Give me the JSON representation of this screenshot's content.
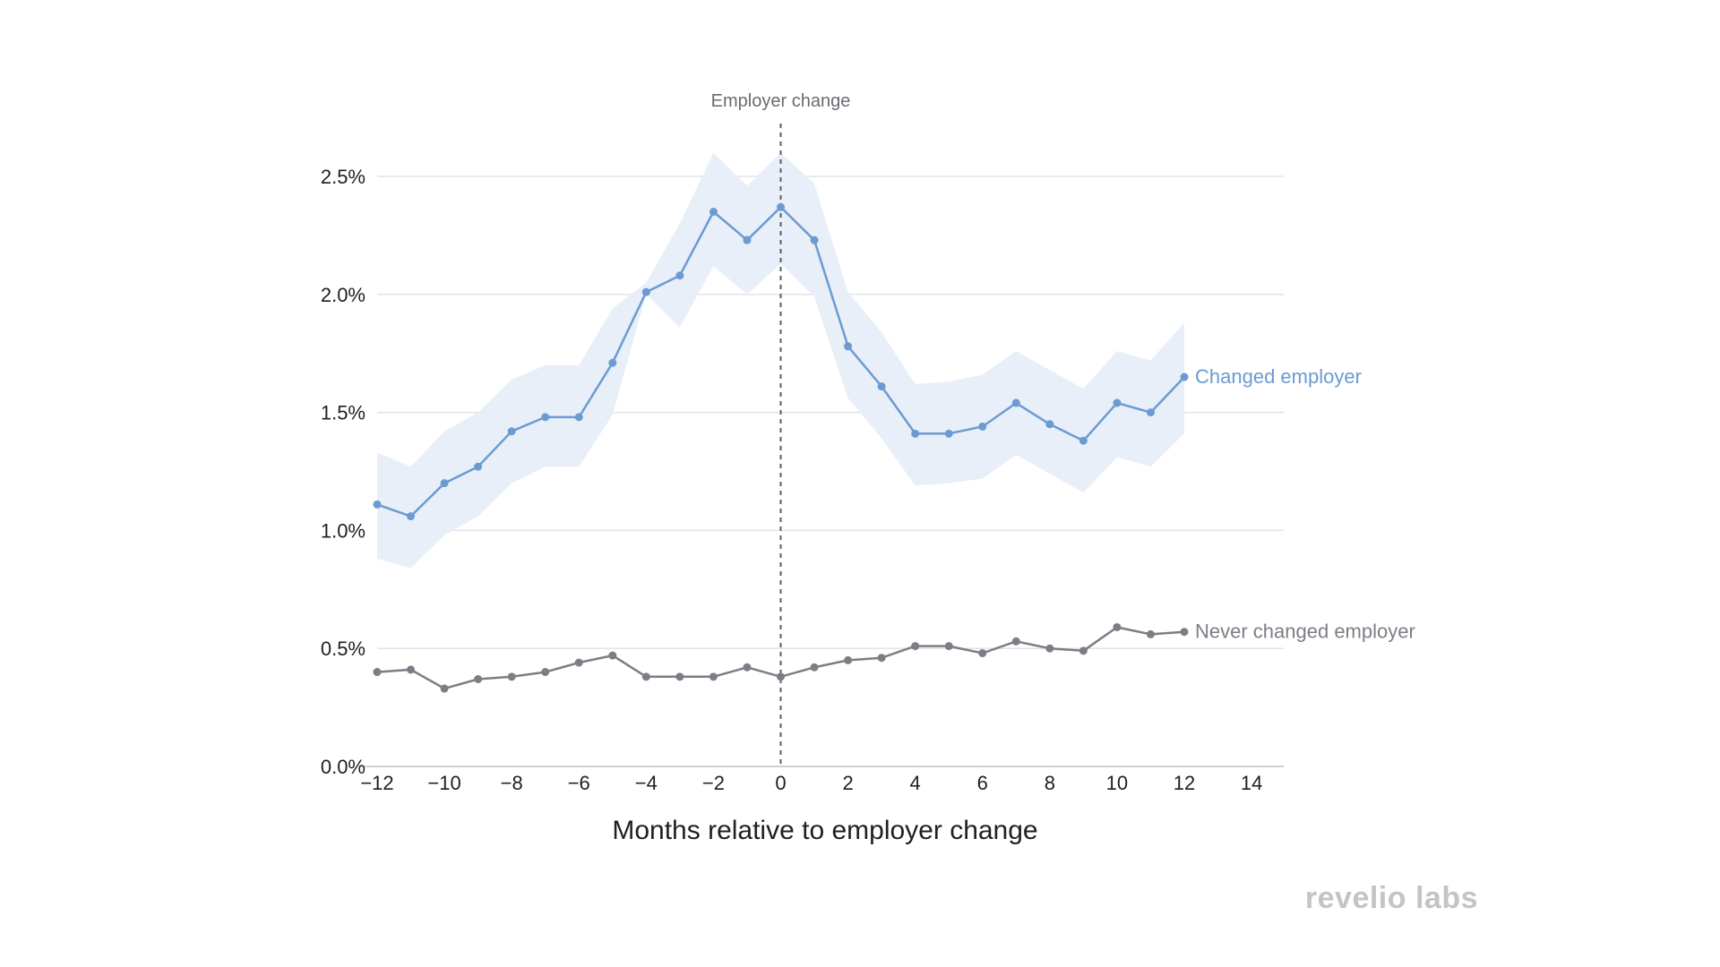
{
  "chart_data": {
    "type": "line",
    "xlabel": "Months relative to employer change",
    "ylabel": "",
    "xlim": [
      -12,
      15
    ],
    "ylim": [
      0,
      2.5
    ],
    "x_ticks": [
      -12,
      -10,
      -8,
      -6,
      -4,
      -2,
      0,
      2,
      4,
      6,
      8,
      10,
      12,
      14
    ],
    "x_tick_labels": [
      "−12",
      "−10",
      "−8",
      "−6",
      "−4",
      "−2",
      "0",
      "2",
      "4",
      "6",
      "8",
      "10",
      "12",
      "14"
    ],
    "y_ticks": [
      0,
      0.5,
      1.0,
      1.5,
      2.0,
      2.5
    ],
    "y_tick_labels": [
      "0.0%",
      "0.5%",
      "1.0%",
      "1.5%",
      "2.0%",
      "2.5%"
    ],
    "grid": true,
    "annotation": {
      "label": "Employer change",
      "x": 0
    },
    "series": [
      {
        "name": "Changed employer",
        "color": "#6b9bd1",
        "band_color": "#e8eff8",
        "x": [
          -12,
          -11,
          -10,
          -9,
          -8,
          -7,
          -6,
          -5,
          -4,
          -3,
          -2,
          -1,
          0,
          1,
          2,
          3,
          4,
          5,
          6,
          7,
          8,
          9,
          10,
          11,
          12
        ],
        "values": [
          1.11,
          1.06,
          1.2,
          1.27,
          1.42,
          1.48,
          1.48,
          1.71,
          2.01,
          2.08,
          2.35,
          2.23,
          2.37,
          2.23,
          1.78,
          1.61,
          1.41,
          1.41,
          1.44,
          1.54,
          1.45,
          1.38,
          1.54,
          1.5,
          1.65
        ],
        "upper": [
          1.33,
          1.27,
          1.42,
          1.5,
          1.64,
          1.7,
          1.7,
          1.94,
          2.05,
          2.3,
          2.6,
          2.46,
          2.6,
          2.47,
          2.01,
          1.84,
          1.62,
          1.63,
          1.66,
          1.76,
          1.68,
          1.6,
          1.76,
          1.72,
          1.88
        ],
        "lower": [
          0.88,
          0.84,
          0.98,
          1.06,
          1.2,
          1.27,
          1.27,
          1.49,
          2.0,
          1.86,
          2.12,
          2.0,
          2.13,
          1.99,
          1.56,
          1.39,
          1.19,
          1.2,
          1.22,
          1.32,
          1.24,
          1.16,
          1.31,
          1.27,
          1.41
        ]
      },
      {
        "name": "Never changed employer",
        "color": "#7d7d85",
        "x": [
          -12,
          -11,
          -10,
          -9,
          -8,
          -7,
          -6,
          -5,
          -4,
          -3,
          -2,
          -1,
          0,
          1,
          2,
          3,
          4,
          5,
          6,
          7,
          8,
          9,
          10,
          11,
          12
        ],
        "values": [
          0.4,
          0.41,
          0.33,
          0.37,
          0.38,
          0.4,
          0.44,
          0.47,
          0.38,
          0.38,
          0.38,
          0.42,
          0.38,
          0.42,
          0.45,
          0.46,
          0.51,
          0.51,
          0.48,
          0.53,
          0.5,
          0.49,
          0.59,
          0.56,
          0.57
        ]
      }
    ]
  },
  "logo": {
    "text": "revelio labs",
    "color": "#c4c4c8"
  }
}
